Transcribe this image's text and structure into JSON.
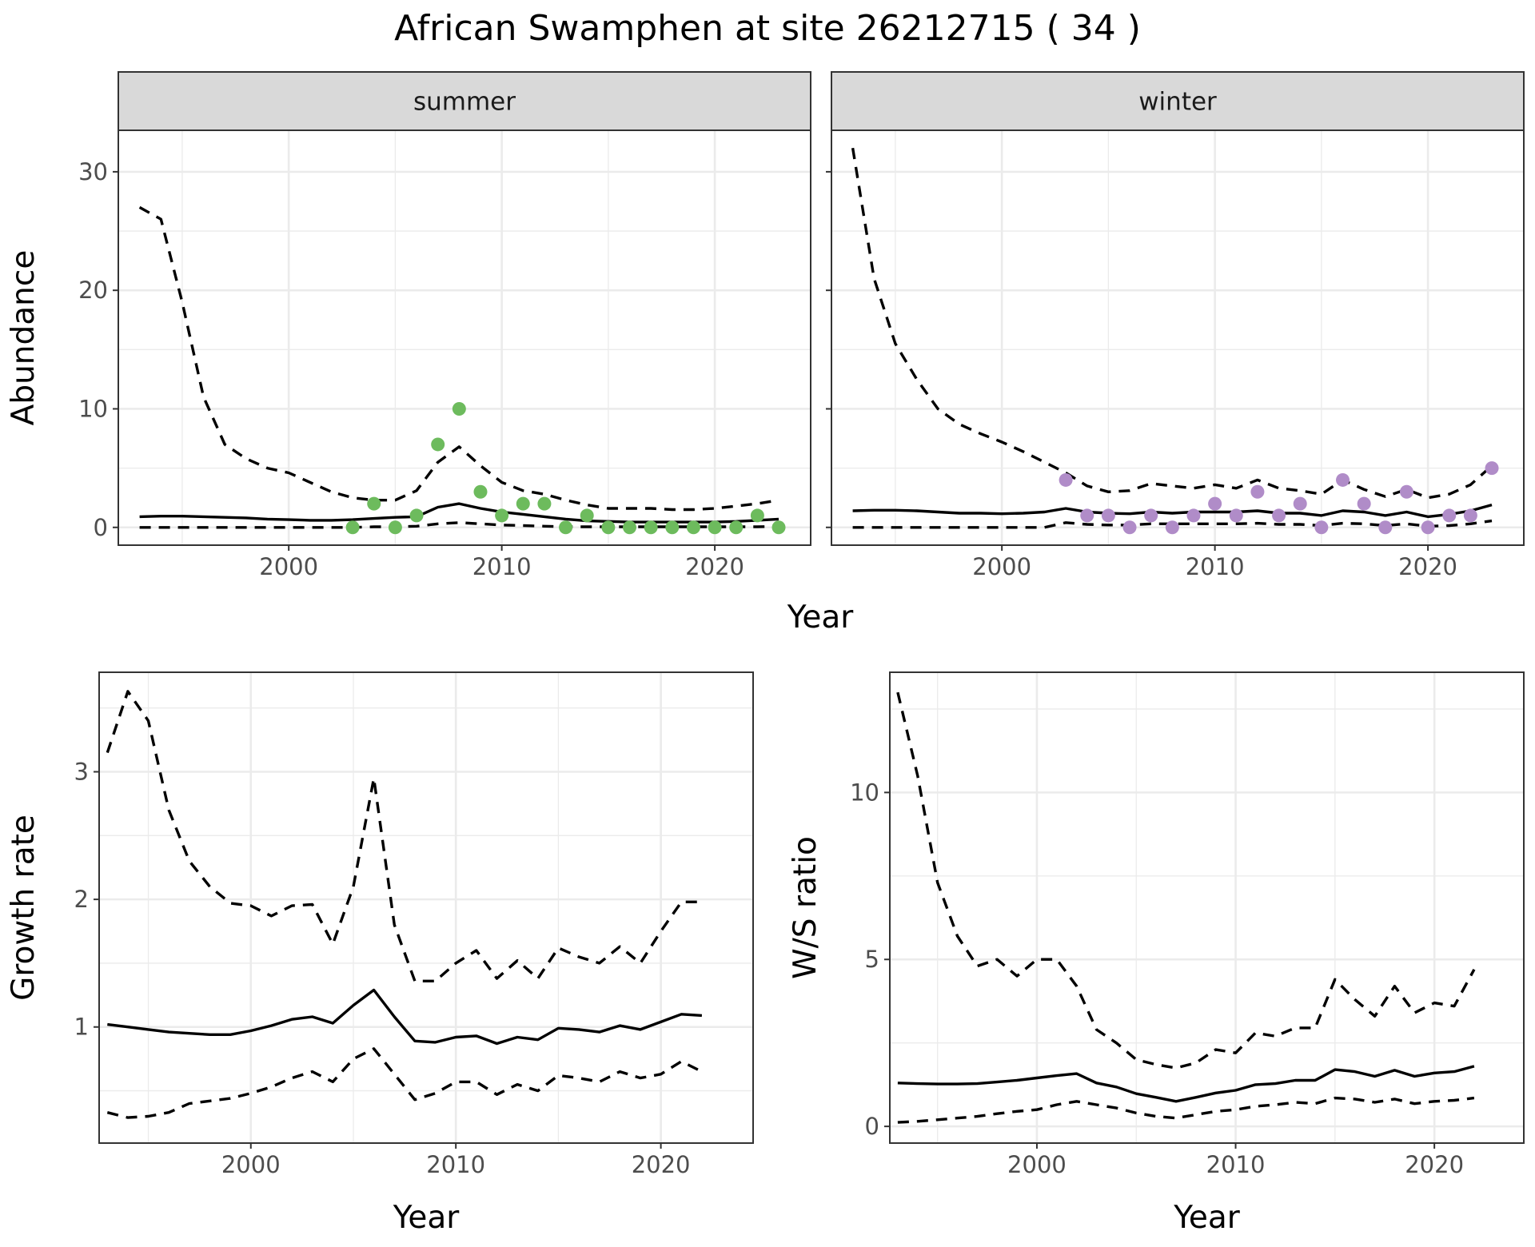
{
  "figure": {
    "title": "African Swamphen at site 26212715 ( 34 )"
  },
  "colors": {
    "summer_points": "#6dbb5d",
    "winter_points": "#b08cc8"
  },
  "chart_data": [
    {
      "type": "line",
      "id": "summer",
      "facet_label": "summer",
      "xlabel": "Year",
      "ylabel": "Abundance",
      "xlim": [
        1992,
        2024.5
      ],
      "ylim": [
        -1.5,
        33.5
      ],
      "xticks": [
        2000,
        2010,
        2020
      ],
      "yticks": [
        0,
        10,
        20,
        30
      ],
      "grid": true,
      "series": [
        {
          "role": "estimate",
          "style": "solid",
          "x": [
            1993,
            1994,
            1995,
            1996,
            1997,
            1998,
            1999,
            2000,
            2001,
            2002,
            2003,
            2004,
            2005,
            2006,
            2007,
            2008,
            2009,
            2010,
            2011,
            2012,
            2013,
            2014,
            2015,
            2016,
            2017,
            2018,
            2019,
            2020,
            2021,
            2022,
            2023
          ],
          "y": [
            0.9,
            0.95,
            0.95,
            0.9,
            0.85,
            0.8,
            0.7,
            0.65,
            0.6,
            0.6,
            0.65,
            0.75,
            0.85,
            0.9,
            1.7,
            2.0,
            1.6,
            1.3,
            1.1,
            0.9,
            0.7,
            0.55,
            0.5,
            0.45,
            0.45,
            0.45,
            0.45,
            0.45,
            0.5,
            0.6,
            0.7
          ]
        },
        {
          "role": "upper",
          "style": "dashed",
          "x": [
            1993,
            1994,
            1995,
            1996,
            1997,
            1998,
            1999,
            2000,
            2001,
            2002,
            2003,
            2004,
            2005,
            2006,
            2007,
            2008,
            2009,
            2010,
            2011,
            2012,
            2013,
            2014,
            2015,
            2016,
            2017,
            2018,
            2019,
            2020,
            2021,
            2022,
            2023
          ],
          "y": [
            27,
            26,
            19,
            11,
            7,
            5.8,
            5,
            4.6,
            3.8,
            3,
            2.5,
            2.3,
            2.3,
            3.1,
            5.5,
            6.8,
            5.2,
            3.8,
            3.1,
            2.8,
            2.3,
            1.9,
            1.6,
            1.6,
            1.6,
            1.5,
            1.5,
            1.6,
            1.8,
            2.0,
            2.3
          ]
        },
        {
          "role": "lower",
          "style": "dashed",
          "x": [
            1993,
            1994,
            1995,
            1996,
            1997,
            1998,
            1999,
            2000,
            2001,
            2002,
            2003,
            2004,
            2005,
            2006,
            2007,
            2008,
            2009,
            2010,
            2011,
            2012,
            2013,
            2014,
            2015,
            2016,
            2017,
            2018,
            2019,
            2020,
            2021,
            2022,
            2023
          ],
          "y": [
            0,
            0,
            0,
            0,
            0,
            0,
            0,
            0,
            0,
            0,
            0,
            0.05,
            0.05,
            0.1,
            0.3,
            0.4,
            0.3,
            0.2,
            0.15,
            0.1,
            0.05,
            0.05,
            0.05,
            0.05,
            0.05,
            0.05,
            0.05,
            0.05,
            0.05,
            0.05,
            0.1
          ]
        },
        {
          "role": "observed",
          "style": "points",
          "x": [
            2003,
            2004,
            2005,
            2006,
            2007,
            2008,
            2009,
            2010,
            2011,
            2012,
            2013,
            2014,
            2015,
            2016,
            2017,
            2018,
            2019,
            2020,
            2021,
            2022,
            2023
          ],
          "y": [
            0,
            2,
            0,
            1,
            7,
            10,
            3,
            1,
            2,
            2,
            0,
            1,
            0,
            0,
            0,
            0,
            0,
            0,
            0,
            1,
            0
          ]
        }
      ]
    },
    {
      "type": "line",
      "id": "winter",
      "facet_label": "winter",
      "xlabel": "Year",
      "ylabel": "Abundance",
      "xlim": [
        1992,
        2024.5
      ],
      "ylim": [
        -1.5,
        33.5
      ],
      "xticks": [
        2000,
        2010,
        2020
      ],
      "yticks": [
        0,
        10,
        20,
        30
      ],
      "grid": true,
      "series": [
        {
          "role": "estimate",
          "style": "solid",
          "x": [
            1993,
            1994,
            1995,
            1996,
            1997,
            1998,
            1999,
            2000,
            2001,
            2002,
            2003,
            2004,
            2005,
            2006,
            2007,
            2008,
            2009,
            2010,
            2011,
            2012,
            2013,
            2014,
            2015,
            2016,
            2017,
            2018,
            2019,
            2020,
            2021,
            2022,
            2023
          ],
          "y": [
            1.4,
            1.45,
            1.45,
            1.4,
            1.3,
            1.2,
            1.2,
            1.15,
            1.2,
            1.3,
            1.6,
            1.3,
            1.2,
            1.15,
            1.3,
            1.2,
            1.3,
            1.3,
            1.3,
            1.4,
            1.2,
            1.2,
            1.0,
            1.4,
            1.3,
            1.0,
            1.3,
            0.9,
            1.1,
            1.4,
            1.9
          ]
        },
        {
          "role": "upper",
          "style": "dashed",
          "x": [
            1993,
            1994,
            1995,
            1996,
            1997,
            1998,
            1999,
            2000,
            2001,
            2002,
            2003,
            2004,
            2005,
            2006,
            2007,
            2008,
            2009,
            2010,
            2011,
            2012,
            2013,
            2014,
            2015,
            2016,
            2017,
            2018,
            2019,
            2020,
            2021,
            2022,
            2023
          ],
          "y": [
            32,
            21,
            15.5,
            12.5,
            10,
            8.7,
            7.9,
            7.2,
            6.4,
            5.5,
            4.6,
            3.5,
            3,
            3.1,
            3.7,
            3.5,
            3.3,
            3.6,
            3.3,
            4.0,
            3.3,
            3.1,
            2.8,
            4.0,
            3.2,
            2.6,
            3.2,
            2.5,
            2.8,
            3.6,
            5.2
          ]
        },
        {
          "role": "lower",
          "style": "dashed",
          "x": [
            1993,
            1994,
            1995,
            1996,
            1997,
            1998,
            1999,
            2000,
            2001,
            2002,
            2003,
            2004,
            2005,
            2006,
            2007,
            2008,
            2009,
            2010,
            2011,
            2012,
            2013,
            2014,
            2015,
            2016,
            2017,
            2018,
            2019,
            2020,
            2021,
            2022,
            2023
          ],
          "y": [
            0,
            0,
            0,
            0,
            0,
            0,
            0,
            0,
            0,
            0,
            0.4,
            0.25,
            0.2,
            0.2,
            0.3,
            0.3,
            0.3,
            0.3,
            0.3,
            0.35,
            0.25,
            0.25,
            0.15,
            0.35,
            0.3,
            0.15,
            0.3,
            0.1,
            0.15,
            0.3,
            0.55
          ]
        },
        {
          "role": "observed",
          "style": "points",
          "x": [
            2003,
            2004,
            2005,
            2006,
            2007,
            2008,
            2009,
            2010,
            2011,
            2012,
            2013,
            2014,
            2015,
            2016,
            2017,
            2018,
            2019,
            2020,
            2021,
            2022,
            2023
          ],
          "y": [
            4,
            1,
            1,
            0,
            1,
            0,
            1,
            2,
            1,
            3,
            1,
            2,
            0,
            4,
            2,
            0,
            3,
            0,
            1,
            1,
            5
          ]
        }
      ]
    },
    {
      "type": "line",
      "id": "growth",
      "xlabel": "Year",
      "ylabel": "Growth rate",
      "xlim": [
        1992.6,
        2024.5
      ],
      "ylim": [
        0.09,
        3.78
      ],
      "xticks": [
        2000,
        2010,
        2020
      ],
      "yticks": [
        1,
        2,
        3
      ],
      "grid": true,
      "series": [
        {
          "role": "estimate",
          "style": "solid",
          "x": [
            1993,
            1994,
            1995,
            1996,
            1997,
            1998,
            1999,
            2000,
            2001,
            2002,
            2003,
            2004,
            2005,
            2006,
            2007,
            2008,
            2009,
            2010,
            2011,
            2012,
            2013,
            2014,
            2015,
            2016,
            2017,
            2018,
            2019,
            2020,
            2021,
            2022
          ],
          "y": [
            1.02,
            1.0,
            0.98,
            0.96,
            0.95,
            0.94,
            0.94,
            0.97,
            1.01,
            1.06,
            1.08,
            1.03,
            1.17,
            1.29,
            1.08,
            0.89,
            0.88,
            0.92,
            0.93,
            0.87,
            0.92,
            0.9,
            0.99,
            0.98,
            0.96,
            1.01,
            0.98,
            1.04,
            1.1,
            1.09
          ]
        },
        {
          "role": "upper",
          "style": "dashed",
          "x": [
            1993,
            1994,
            1995,
            1996,
            1997,
            1998,
            1999,
            2000,
            2001,
            2002,
            2003,
            2004,
            2005,
            2006,
            2007,
            2008,
            2009,
            2010,
            2011,
            2012,
            2013,
            2014,
            2015,
            2016,
            2017,
            2018,
            2019,
            2020,
            2021,
            2022
          ],
          "y": [
            3.15,
            3.63,
            3.4,
            2.7,
            2.3,
            2.1,
            1.97,
            1.95,
            1.87,
            1.95,
            1.96,
            1.65,
            2.1,
            2.95,
            1.8,
            1.36,
            1.36,
            1.5,
            1.6,
            1.38,
            1.52,
            1.38,
            1.62,
            1.55,
            1.5,
            1.63,
            1.5,
            1.75,
            1.98,
            1.98
          ]
        },
        {
          "role": "lower",
          "style": "dashed",
          "x": [
            1993,
            1994,
            1995,
            1996,
            1997,
            1998,
            1999,
            2000,
            2001,
            2002,
            2003,
            2004,
            2005,
            2006,
            2007,
            2008,
            2009,
            2010,
            2011,
            2012,
            2013,
            2014,
            2015,
            2016,
            2017,
            2018,
            2019,
            2020,
            2021,
            2022
          ],
          "y": [
            0.33,
            0.29,
            0.3,
            0.33,
            0.4,
            0.42,
            0.44,
            0.48,
            0.53,
            0.6,
            0.65,
            0.57,
            0.75,
            0.83,
            0.63,
            0.43,
            0.48,
            0.57,
            0.57,
            0.47,
            0.55,
            0.5,
            0.62,
            0.6,
            0.57,
            0.65,
            0.6,
            0.63,
            0.73,
            0.65
          ]
        }
      ]
    },
    {
      "type": "line",
      "id": "ratio",
      "xlabel": "Year",
      "ylabel": "W/S ratio",
      "xlim": [
        1992.6,
        2024.5
      ],
      "ylim": [
        -0.5,
        13.6
      ],
      "xticks": [
        2000,
        2010,
        2020
      ],
      "yticks": [
        0,
        5,
        10
      ],
      "grid": true,
      "series": [
        {
          "role": "estimate",
          "style": "solid",
          "x": [
            1993,
            1994,
            1995,
            1996,
            1997,
            1998,
            1999,
            2000,
            2001,
            2002,
            2003,
            2004,
            2005,
            2006,
            2007,
            2008,
            2009,
            2010,
            2011,
            2012,
            2013,
            2014,
            2015,
            2016,
            2017,
            2018,
            2019,
            2020,
            2021,
            2022
          ],
          "y": [
            1.3,
            1.28,
            1.27,
            1.27,
            1.28,
            1.33,
            1.38,
            1.45,
            1.52,
            1.58,
            1.3,
            1.18,
            0.98,
            0.87,
            0.75,
            0.87,
            1.0,
            1.08,
            1.25,
            1.28,
            1.38,
            1.38,
            1.7,
            1.64,
            1.5,
            1.68,
            1.5,
            1.6,
            1.64,
            1.8
          ]
        },
        {
          "role": "upper",
          "style": "dashed",
          "x": [
            1993,
            1994,
            1995,
            1996,
            1997,
            1998,
            1999,
            2000,
            2001,
            2002,
            2003,
            2004,
            2005,
            2006,
            2007,
            2008,
            2009,
            2010,
            2011,
            2012,
            2013,
            2014,
            2015,
            2016,
            2017,
            2018,
            2019,
            2020,
            2021,
            2022
          ],
          "y": [
            13,
            10.5,
            7.3,
            5.7,
            4.8,
            5.0,
            4.5,
            5.0,
            5.0,
            4.2,
            2.9,
            2.5,
            2.0,
            1.85,
            1.75,
            1.9,
            2.3,
            2.2,
            2.8,
            2.7,
            2.95,
            2.95,
            4.4,
            3.8,
            3.3,
            4.2,
            3.4,
            3.7,
            3.6,
            4.7
          ]
        },
        {
          "role": "lower",
          "style": "dashed",
          "x": [
            1993,
            1994,
            1995,
            1996,
            1997,
            1998,
            1999,
            2000,
            2001,
            2002,
            2003,
            2004,
            2005,
            2006,
            2007,
            2008,
            2009,
            2010,
            2011,
            2012,
            2013,
            2014,
            2015,
            2016,
            2017,
            2018,
            2019,
            2020,
            2021,
            2022
          ],
          "y": [
            0.12,
            0.15,
            0.2,
            0.25,
            0.3,
            0.38,
            0.45,
            0.5,
            0.65,
            0.75,
            0.65,
            0.55,
            0.4,
            0.3,
            0.25,
            0.35,
            0.45,
            0.5,
            0.6,
            0.65,
            0.72,
            0.68,
            0.85,
            0.82,
            0.72,
            0.82,
            0.68,
            0.75,
            0.78,
            0.85
          ]
        }
      ]
    }
  ]
}
